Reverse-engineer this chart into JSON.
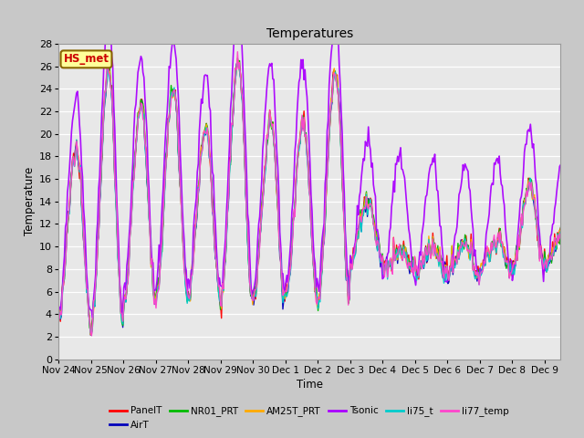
{
  "title": "Temperatures",
  "xlabel": "Time",
  "ylabel": "Temperature",
  "ylim": [
    0,
    28
  ],
  "yticks": [
    0,
    2,
    4,
    6,
    8,
    10,
    12,
    14,
    16,
    18,
    20,
    22,
    24,
    26,
    28
  ],
  "fig_bg_color": "#c8c8c8",
  "plot_bg_color": "#e8e8e8",
  "series": [
    "PanelT",
    "AirT",
    "NR01_PRT",
    "AM25T_PRT",
    "Tsonic",
    "li75_t",
    "li77_temp"
  ],
  "colors": [
    "#ff0000",
    "#0000bb",
    "#00bb00",
    "#ffaa00",
    "#aa00ff",
    "#00cccc",
    "#ff44cc"
  ],
  "linewidths": [
    1.0,
    1.0,
    1.0,
    1.0,
    1.2,
    1.0,
    1.0
  ],
  "annotation_text": "HS_met",
  "annotation_color": "#cc0000",
  "annotation_bg": "#ffff99",
  "annotation_border": "#886600",
  "n_points": 500,
  "x_tick_labels": [
    "Nov 24",
    "Nov 25",
    "Nov 26",
    "Nov 27",
    "Nov 28",
    "Nov 29",
    "Nov 30",
    "Dec 1",
    "Dec 2",
    "Dec 3",
    "Dec 4",
    "Dec 5",
    "Dec 6",
    "Dec 7",
    "Dec 8",
    "Dec 9"
  ],
  "x_tick_positions": [
    0,
    1,
    2,
    3,
    4,
    5,
    6,
    7,
    8,
    9,
    10,
    11,
    12,
    13,
    14,
    15
  ],
  "daily_patterns": {
    "base_min": [
      3.5,
      3.0,
      5.0,
      5.5,
      5.5,
      5.0,
      5.0,
      5.5,
      5.0,
      8.5,
      8.0,
      7.5,
      7.5,
      8.0,
      8.0,
      8.5
    ],
    "base_max": [
      18.5,
      25.5,
      22.5,
      24.0,
      20.5,
      26.5,
      21.0,
      21.0,
      25.5,
      14.0,
      9.5,
      10.0,
      10.0,
      10.5,
      15.5,
      10.5
    ],
    "tsonic_min": [
      4.5,
      4.0,
      6.0,
      6.5,
      6.5,
      6.0,
      6.0,
      6.5,
      6.0,
      8.5,
      7.5,
      7.0,
      7.0,
      7.5,
      7.5,
      8.0
    ],
    "tsonic_max": [
      23.0,
      30.0,
      27.0,
      28.5,
      25.5,
      32.0,
      26.5,
      26.5,
      30.5,
      19.5,
      18.5,
      17.5,
      17.0,
      17.5,
      20.5,
      17.0
    ]
  }
}
